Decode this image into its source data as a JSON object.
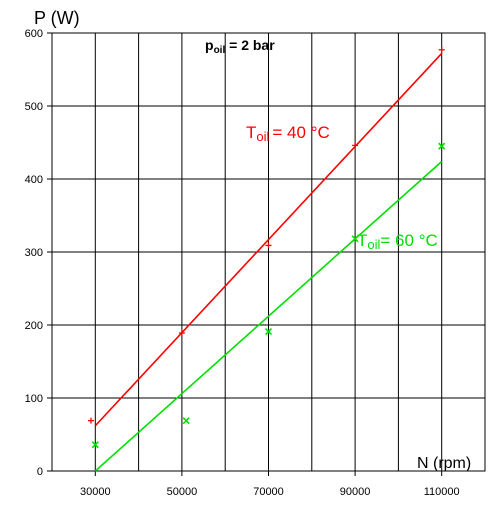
{
  "chart_data": {
    "type": "scatter",
    "ylabel": "P (W)",
    "xlabel": "N (rpm)",
    "xlim": [
      20000,
      120000
    ],
    "ylim": [
      0,
      600
    ],
    "x_ticks": [
      30000,
      50000,
      70000,
      90000,
      110000
    ],
    "x_tick_labels": [
      "30000",
      "50000",
      "70000",
      "90000",
      "110000"
    ],
    "x_gridlines": [
      20000,
      30000,
      40000,
      50000,
      60000,
      70000,
      80000,
      90000,
      100000,
      110000,
      120000
    ],
    "y_ticks": [
      0,
      100,
      200,
      300,
      400,
      500,
      600
    ],
    "y_tick_labels": [
      "0",
      "100",
      "200",
      "300",
      "400",
      "500",
      "600"
    ],
    "grid": true,
    "annotations": {
      "p_main": "p",
      "p_sub": "oil",
      "p_rest": " = 2 bar"
    },
    "series": [
      {
        "name_main": "T",
        "name_sub": "oil",
        "name_rest": "= 40 °C",
        "color": "#ff0000",
        "marker": "+",
        "points": [
          [
            29000,
            69
          ],
          [
            50000,
            189
          ],
          [
            70000,
            309
          ],
          [
            90000,
            446
          ],
          [
            110000,
            577
          ]
        ],
        "fit": [
          [
            30000,
            62
          ],
          [
            110000,
            572
          ]
        ]
      },
      {
        "name_main": "T",
        "name_sub": "oil",
        "name_rest": "= 60 °C",
        "color": "#00e000",
        "marker": "x",
        "points": [
          [
            30000,
            36
          ],
          [
            51000,
            69
          ],
          [
            70000,
            191
          ],
          [
            90000,
            318
          ],
          [
            110000,
            445
          ]
        ],
        "fit": [
          [
            30000,
            0
          ],
          [
            110000,
            424
          ]
        ]
      }
    ]
  }
}
